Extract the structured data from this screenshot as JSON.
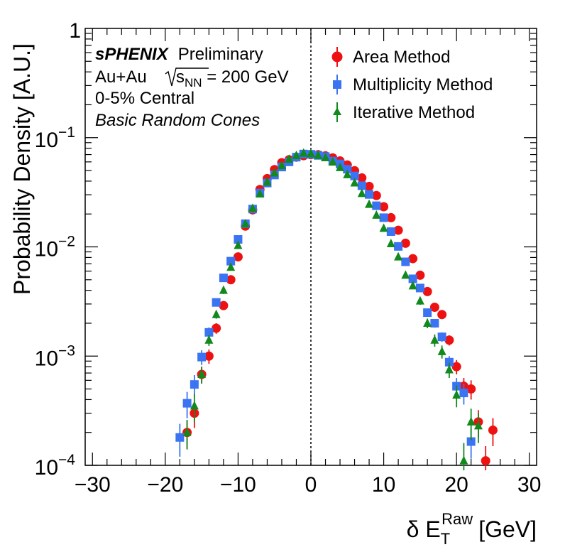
{
  "chart_data": {
    "type": "scatter",
    "title": "",
    "xlabel": {
      "prefix": "δ E",
      "sub": "T",
      "sup": "Raw",
      "unit": "[GeV]"
    },
    "ylabel": "Probability Density [A.U.]",
    "xlim": [
      -31,
      31
    ],
    "ylim": [
      0.0001,
      1
    ],
    "yscale": "log",
    "grid": false,
    "legend_position": "top-right",
    "x_ticks": [
      -30,
      -20,
      -10,
      0,
      10,
      20,
      30
    ],
    "x_tick_labels": [
      "−30",
      "−20",
      "−10",
      "0",
      "10",
      "20",
      "30"
    ],
    "y_tick_labels": [
      {
        "value": 1,
        "base": "1",
        "exp": ""
      },
      {
        "value": 0.1,
        "base": "10",
        "exp": "−1"
      },
      {
        "value": 0.01,
        "base": "10",
        "exp": "−2"
      },
      {
        "value": 0.001,
        "base": "10",
        "exp": "−3"
      },
      {
        "value": 0.0001,
        "base": "10",
        "exp": "−4"
      }
    ],
    "reference_line_x": 0,
    "annotations": {
      "experiment": "sPHENIX",
      "status": "Preliminary",
      "system": "Au+Au",
      "energy_symbol": "s",
      "energy_sub": "NN",
      "energy_value": " = 200 GeV",
      "centrality": "0-5% Central",
      "cones": "Basic Random Cones"
    },
    "series": [
      {
        "name": "Area Method",
        "marker": "circle",
        "color": "#ee1111",
        "points": [
          {
            "x": -17,
            "y": 0.0002,
            "err": 6e-05
          },
          {
            "x": -16,
            "y": 0.0003,
            "err": 8e-05
          },
          {
            "x": -15,
            "y": 0.00068,
            "err": 0.00012
          },
          {
            "x": -14,
            "y": 0.001,
            "err": 0.00015
          },
          {
            "x": -13,
            "y": 0.0018,
            "err": 0.0002
          },
          {
            "x": -12,
            "y": 0.0029,
            "err": 0.0002
          },
          {
            "x": -11,
            "y": 0.005,
            "err": 0.0003
          },
          {
            "x": -10,
            "y": 0.0081,
            "err": 0.0004
          },
          {
            "x": -9,
            "y": 0.0155,
            "err": 0.0005
          },
          {
            "x": -8,
            "y": 0.0218,
            "err": 0.0006
          },
          {
            "x": -7,
            "y": 0.0335,
            "err": 0.0008
          },
          {
            "x": -6,
            "y": 0.0422,
            "err": 0.0009
          },
          {
            "x": -5,
            "y": 0.051,
            "err": 0.001
          },
          {
            "x": -4,
            "y": 0.059,
            "err": 0.001
          },
          {
            "x": -3,
            "y": 0.0628,
            "err": 0.001
          },
          {
            "x": -2,
            "y": 0.0663,
            "err": 0.001
          },
          {
            "x": -1,
            "y": 0.0684,
            "err": 0.001
          },
          {
            "x": 0,
            "y": 0.0698,
            "err": 0.001
          },
          {
            "x": 1,
            "y": 0.0698,
            "err": 0.001
          },
          {
            "x": 2,
            "y": 0.0681,
            "err": 0.001
          },
          {
            "x": 3,
            "y": 0.0653,
            "err": 0.001
          },
          {
            "x": 4,
            "y": 0.0612,
            "err": 0.001
          },
          {
            "x": 5,
            "y": 0.0562,
            "err": 0.001
          },
          {
            "x": 6,
            "y": 0.0498,
            "err": 0.001
          },
          {
            "x": 7,
            "y": 0.0428,
            "err": 0.0009
          },
          {
            "x": 8,
            "y": 0.0358,
            "err": 0.0008
          },
          {
            "x": 9,
            "y": 0.0295,
            "err": 0.0007
          },
          {
            "x": 10,
            "y": 0.0233,
            "err": 0.0006
          },
          {
            "x": 11,
            "y": 0.0185,
            "err": 0.0005
          },
          {
            "x": 12,
            "y": 0.0142,
            "err": 0.0005
          },
          {
            "x": 13,
            "y": 0.0108,
            "err": 0.0004
          },
          {
            "x": 14,
            "y": 0.0078,
            "err": 0.0003
          },
          {
            "x": 15,
            "y": 0.0055,
            "err": 0.0003
          },
          {
            "x": 16,
            "y": 0.0039,
            "err": 0.00025
          },
          {
            "x": 17,
            "y": 0.0028,
            "err": 0.0002
          },
          {
            "x": 18,
            "y": 0.0024,
            "err": 0.00018
          },
          {
            "x": 19,
            "y": 0.0014,
            "err": 0.00015
          },
          {
            "x": 20,
            "y": 0.0008,
            "err": 0.00012
          },
          {
            "x": 21,
            "y": 0.00053,
            "err": 0.0001
          },
          {
            "x": 22,
            "y": 0.0005,
            "err": 0.0001
          },
          {
            "x": 23,
            "y": 0.00025,
            "err": 7e-05
          },
          {
            "x": 24,
            "y": 0.00011,
            "err": 4e-05
          },
          {
            "x": 25,
            "y": 0.00021,
            "err": 6e-05
          }
        ]
      },
      {
        "name": "Multiplicity Method",
        "marker": "square",
        "color": "#3b74f2",
        "points": [
          {
            "x": -18,
            "y": 0.00018,
            "err": 6e-05
          },
          {
            "x": -17,
            "y": 0.00037,
            "err": 0.0001
          },
          {
            "x": -16,
            "y": 0.00055,
            "err": 0.00012
          },
          {
            "x": -15,
            "y": 0.00098,
            "err": 0.00015
          },
          {
            "x": -14,
            "y": 0.00165,
            "err": 0.00018
          },
          {
            "x": -13,
            "y": 0.0031,
            "err": 0.00025
          },
          {
            "x": -12,
            "y": 0.0052,
            "err": 0.0003
          },
          {
            "x": -11,
            "y": 0.0074,
            "err": 0.0004
          },
          {
            "x": -10,
            "y": 0.0117,
            "err": 0.0005
          },
          {
            "x": -9,
            "y": 0.0163,
            "err": 0.0005
          },
          {
            "x": -8,
            "y": 0.0222,
            "err": 0.0006
          },
          {
            "x": -7,
            "y": 0.0311,
            "err": 0.0007
          },
          {
            "x": -6,
            "y": 0.0384,
            "err": 0.0008
          },
          {
            "x": -5,
            "y": 0.0455,
            "err": 0.0009
          },
          {
            "x": -4,
            "y": 0.0538,
            "err": 0.001
          },
          {
            "x": -3,
            "y": 0.06,
            "err": 0.001
          },
          {
            "x": -2,
            "y": 0.0663,
            "err": 0.001
          },
          {
            "x": -1,
            "y": 0.0708,
            "err": 0.001
          },
          {
            "x": 0,
            "y": 0.0704,
            "err": 0.001
          },
          {
            "x": 1,
            "y": 0.0688,
            "err": 0.001
          },
          {
            "x": 2,
            "y": 0.067,
            "err": 0.001
          },
          {
            "x": 3,
            "y": 0.061,
            "err": 0.001
          },
          {
            "x": 4,
            "y": 0.0575,
            "err": 0.001
          },
          {
            "x": 5,
            "y": 0.0514,
            "err": 0.001
          },
          {
            "x": 6,
            "y": 0.0446,
            "err": 0.0009
          },
          {
            "x": 7,
            "y": 0.0363,
            "err": 0.0008
          },
          {
            "x": 8,
            "y": 0.0302,
            "err": 0.0007
          },
          {
            "x": 9,
            "y": 0.0238,
            "err": 0.0006
          },
          {
            "x": 10,
            "y": 0.0185,
            "err": 0.0005
          },
          {
            "x": 11,
            "y": 0.0138,
            "err": 0.0005
          },
          {
            "x": 12,
            "y": 0.0101,
            "err": 0.0004
          },
          {
            "x": 13,
            "y": 0.0073,
            "err": 0.0003
          },
          {
            "x": 14,
            "y": 0.0051,
            "err": 0.0003
          },
          {
            "x": 15,
            "y": 0.0042,
            "err": 0.00025
          },
          {
            "x": 16,
            "y": 0.0025,
            "err": 0.0002
          },
          {
            "x": 17,
            "y": 0.002,
            "err": 0.00018
          },
          {
            "x": 18,
            "y": 0.0015,
            "err": 0.00015
          },
          {
            "x": 19,
            "y": 0.00088,
            "err": 0.00012
          },
          {
            "x": 20,
            "y": 0.00053,
            "err": 0.0001
          },
          {
            "x": 21,
            "y": 0.00046,
            "err": 0.0001
          },
          {
            "x": 22,
            "y": 0.000165,
            "err": 5e-05
          }
        ]
      },
      {
        "name": "Iterative Method",
        "marker": "triangle",
        "color": "#11891c",
        "points": [
          {
            "x": -17,
            "y": 0.0002,
            "err": 6e-05
          },
          {
            "x": -16,
            "y": 0.00035,
            "err": 0.0001
          },
          {
            "x": -15,
            "y": 0.00068,
            "err": 0.00012
          },
          {
            "x": -14,
            "y": 0.0014,
            "err": 0.00016
          },
          {
            "x": -13,
            "y": 0.0024,
            "err": 0.0002
          },
          {
            "x": -12,
            "y": 0.004,
            "err": 0.0003
          },
          {
            "x": -11,
            "y": 0.0065,
            "err": 0.0004
          },
          {
            "x": -10,
            "y": 0.0103,
            "err": 0.0004
          },
          {
            "x": -9,
            "y": 0.0162,
            "err": 0.0005
          },
          {
            "x": -8,
            "y": 0.0225,
            "err": 0.0006
          },
          {
            "x": -7,
            "y": 0.0305,
            "err": 0.0007
          },
          {
            "x": -6,
            "y": 0.0392,
            "err": 0.0008
          },
          {
            "x": -5,
            "y": 0.0475,
            "err": 0.0009
          },
          {
            "x": -4,
            "y": 0.0555,
            "err": 0.001
          },
          {
            "x": -3,
            "y": 0.0635,
            "err": 0.001
          },
          {
            "x": -2,
            "y": 0.0685,
            "err": 0.001
          },
          {
            "x": -1,
            "y": 0.072,
            "err": 0.001
          },
          {
            "x": 0,
            "y": 0.0712,
            "err": 0.001
          },
          {
            "x": 1,
            "y": 0.0688,
            "err": 0.001
          },
          {
            "x": 2,
            "y": 0.0655,
            "err": 0.001
          },
          {
            "x": 3,
            "y": 0.0598,
            "err": 0.001
          },
          {
            "x": 4,
            "y": 0.0532,
            "err": 0.001
          },
          {
            "x": 5,
            "y": 0.0458,
            "err": 0.0009
          },
          {
            "x": 6,
            "y": 0.0385,
            "err": 0.0008
          },
          {
            "x": 7,
            "y": 0.0308,
            "err": 0.0007
          },
          {
            "x": 8,
            "y": 0.0245,
            "err": 0.0006
          },
          {
            "x": 9,
            "y": 0.0195,
            "err": 0.0005
          },
          {
            "x": 10,
            "y": 0.0148,
            "err": 0.0005
          },
          {
            "x": 11,
            "y": 0.0107,
            "err": 0.0004
          },
          {
            "x": 12,
            "y": 0.0081,
            "err": 0.0004
          },
          {
            "x": 13,
            "y": 0.0055,
            "err": 0.0003
          },
          {
            "x": 14,
            "y": 0.0044,
            "err": 0.0003
          },
          {
            "x": 15,
            "y": 0.0032,
            "err": 0.00025
          },
          {
            "x": 16,
            "y": 0.002,
            "err": 0.0002
          },
          {
            "x": 17,
            "y": 0.0014,
            "err": 0.00018
          },
          {
            "x": 18,
            "y": 0.0011,
            "err": 0.00015
          },
          {
            "x": 19,
            "y": 0.00075,
            "err": 0.00012
          },
          {
            "x": 20,
            "y": 0.00044,
            "err": 0.0001
          },
          {
            "x": 21,
            "y": 0.00011,
            "err": 5e-05
          },
          {
            "x": 22,
            "y": 0.00025,
            "err": 8e-05
          },
          {
            "x": 23,
            "y": 0.00023,
            "err": 7e-05
          }
        ]
      }
    ]
  }
}
